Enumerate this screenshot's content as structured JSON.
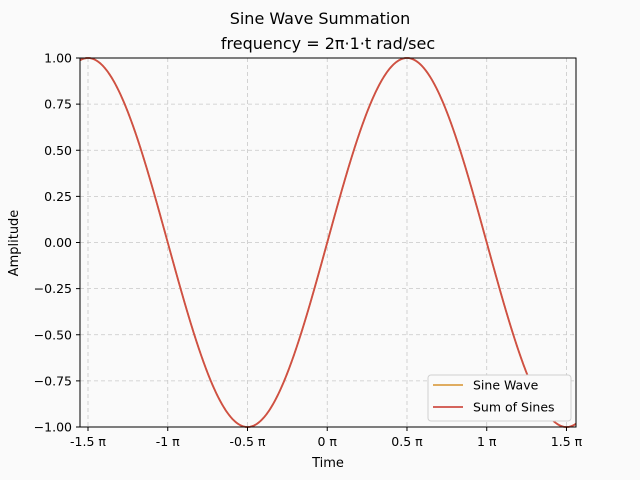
{
  "chart_data": {
    "type": "line",
    "title": "Sine Wave Summation",
    "subtitle": "frequency = 2π·1·t rad/sec",
    "xlabel": "Time",
    "ylabel": "Amplitude",
    "xlim": [
      -4.87,
      4.9
    ],
    "ylim": [
      -1.0,
      1.0
    ],
    "x_ticks": [
      {
        "value": -4.712389,
        "label": "-1.5 π"
      },
      {
        "value": -3.141593,
        "label": "-1 π"
      },
      {
        "value": -1.570796,
        "label": "-0.5 π"
      },
      {
        "value": 0,
        "label": "0 π"
      },
      {
        "value": 1.570796,
        "label": "0.5 π"
      },
      {
        "value": 3.141593,
        "label": "1 π"
      },
      {
        "value": 4.712389,
        "label": "1.5 π"
      }
    ],
    "y_ticks": [
      {
        "value": 1.0,
        "label": "1.00"
      },
      {
        "value": 0.75,
        "label": "0.75"
      },
      {
        "value": 0.5,
        "label": "0.50"
      },
      {
        "value": 0.25,
        "label": "0.25"
      },
      {
        "value": 0.0,
        "label": "0.00"
      },
      {
        "value": -0.25,
        "label": "−0.25"
      },
      {
        "value": -0.5,
        "label": "−0.50"
      },
      {
        "value": -0.75,
        "label": "−0.75"
      },
      {
        "value": -1.0,
        "label": "−1.00"
      }
    ],
    "grid": true,
    "legend_position": "lower-right",
    "series": [
      {
        "name": "Sine Wave",
        "color": "#dba14a",
        "function": "sin(t)",
        "x_range": [
          -4.87,
          4.9
        ]
      },
      {
        "name": "Sum of Sines",
        "color": "#cf4f45",
        "function": "sin(t)",
        "x_range": [
          -4.87,
          4.9
        ]
      }
    ]
  }
}
